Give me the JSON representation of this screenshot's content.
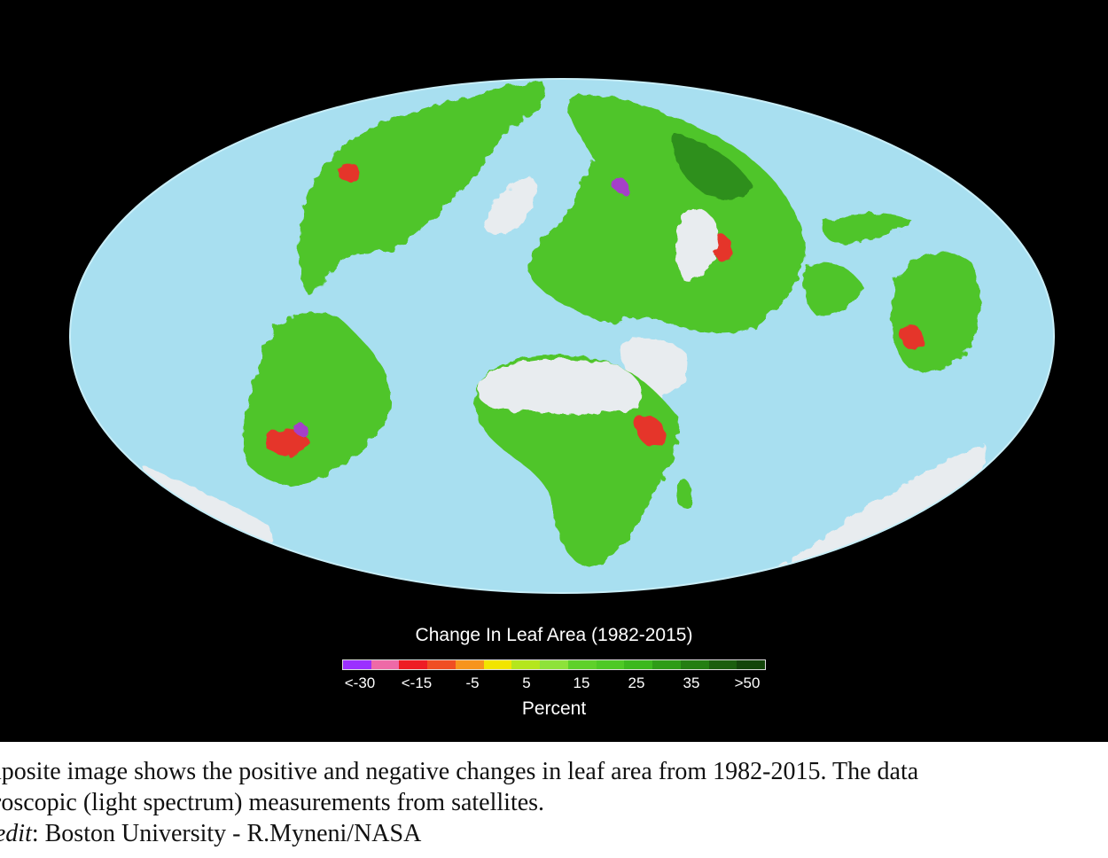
{
  "map": {
    "title": "Change In Leaf Area (1982-2015)",
    "unit_label": "Percent",
    "ocean_color": "#a8dff0",
    "background_color": "#000000",
    "legend_colors": [
      "#9b30ff",
      "#ee6aa7",
      "#ee1c24",
      "#f04e23",
      "#f7941d",
      "#f2e500",
      "#b5e61d",
      "#8ee23a",
      "#5fd12a",
      "#4ec925",
      "#3cb81e",
      "#2e9c17",
      "#247e12",
      "#1b5e0e",
      "#13450a"
    ],
    "legend_ticks": [
      "<-30",
      "<-15",
      "-5",
      "5",
      "15",
      "25",
      "35",
      ">50"
    ],
    "land_colors": {
      "vegetation": "#4fc52a",
      "dense": "#2f8f1a",
      "decline": "#e5342a",
      "severe_decline": "#a540c8",
      "ice_desert": "#e8ecef"
    }
  },
  "caption": {
    "line1": "mposite image shows the positive and negative changes in leaf area from 1982-2015. The data",
    "line2": "roscopic (light spectrum) measurements from  satellites.",
    "credit_label": "redit",
    "credit_text": ": Boston University - R.Myneni/NASA"
  }
}
